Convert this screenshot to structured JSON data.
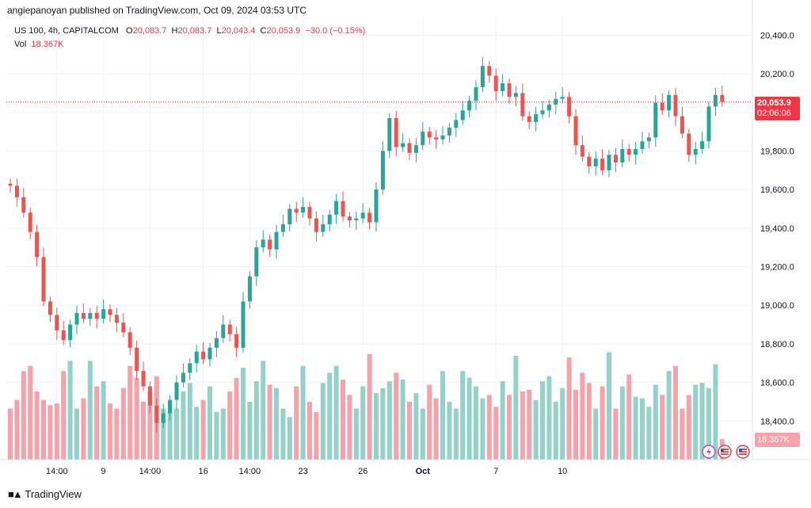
{
  "header": {
    "published": "angiepanoyan published on TradingView.com, Oct 09, 2024 03:53 UTC"
  },
  "legend": {
    "symbol": "US 100, 4h, CAPITALCOM",
    "o_label": "O",
    "o_value": "20,083.7",
    "h_label": "H",
    "h_value": "20,083.7",
    "l_label": "L",
    "l_value": "20,043.4",
    "c_label": "C",
    "c_value": "20,053.9",
    "change": "−30.0 (−0.15%)",
    "vol_label": "Vol",
    "vol_value": "18.367K"
  },
  "price_tag": {
    "price": "20,053.9",
    "countdown": "02:06:06"
  },
  "volume_tag": "18.367K",
  "footer": {
    "brand": "TradingView"
  },
  "colors": {
    "up": "#26a69a",
    "down": "#ef5350",
    "up_vol": "#93d2cb",
    "down_vol": "#f7a1a8",
    "grid": "#f0f3fa"
  },
  "icons": [
    "flash-icon",
    "us-flag-icon",
    "us-flag-icon"
  ],
  "chart_data": {
    "type": "candlestick",
    "title": "US 100, 4h, CAPITALCOM",
    "ylim": [
      18200,
      20500
    ],
    "y_ticks": [
      "20,400.0",
      "20,200.0",
      "20,000.0",
      "19,800.0",
      "19,600.0",
      "19,400.0",
      "19,200.0",
      "19,000.0",
      "18,800.0",
      "18,600.0",
      "18,400.0"
    ],
    "y_tick_values": [
      20400,
      20200,
      20000,
      19800,
      19600,
      19400,
      19200,
      19000,
      18800,
      18600,
      18400
    ],
    "x_ticks": [
      "14:00",
      "9",
      "14:00",
      "16",
      "14:00",
      "23",
      "26",
      "Oct",
      "7",
      "10"
    ],
    "x_tick_bar_index": [
      7,
      14,
      21,
      29,
      36,
      44,
      53,
      62,
      73,
      83
    ],
    "last_price": 20053.9,
    "grid": true,
    "closes": [
      19620,
      19560,
      19480,
      19380,
      19250,
      19020,
      18950,
      18870,
      18820,
      18900,
      18960,
      18930,
      18960,
      18930,
      18980,
      18950,
      18910,
      18860,
      18780,
      18660,
      18580,
      18480,
      18390,
      18440,
      18510,
      18600,
      18650,
      18700,
      18760,
      18720,
      18780,
      18830,
      18900,
      18850,
      18780,
      19020,
      19150,
      19300,
      19340,
      19290,
      19380,
      19420,
      19500,
      19480,
      19510,
      19450,
      19380,
      19420,
      19470,
      19540,
      19460,
      19440,
      19450,
      19480,
      19430,
      19600,
      19800,
      19970,
      19820,
      19840,
      19790,
      19830,
      19900,
      19870,
      19860,
      19880,
      19920,
      19960,
      20010,
      20060,
      20130,
      20240,
      20190,
      20110,
      20150,
      20080,
      20100,
      19980,
      19950,
      19990,
      20010,
      20040,
      20070,
      20080,
      19980,
      19830,
      19770,
      19720,
      19760,
      19700,
      19780,
      19740,
      19810,
      19780,
      19810,
      19850,
      19870,
      20050,
      20010,
      20090,
      19980,
      19890,
      19780,
      19810,
      19850,
      20030,
      20090,
      20053.9
    ],
    "volumes": [
      0.3,
      0.35,
      0.52,
      0.55,
      0.4,
      0.35,
      0.32,
      0.33,
      0.52,
      0.58,
      0.3,
      0.36,
      0.58,
      0.43,
      0.46,
      0.33,
      0.3,
      0.42,
      0.55,
      0.48,
      0.34,
      0.4,
      0.49,
      0.3,
      0.28,
      0.3,
      0.4,
      0.45,
      0.31,
      0.35,
      0.43,
      0.28,
      0.3,
      0.4,
      0.48,
      0.54,
      0.34,
      0.46,
      0.58,
      0.44,
      0.42,
      0.3,
      0.25,
      0.43,
      0.55,
      0.34,
      0.28,
      0.45,
      0.51,
      0.55,
      0.47,
      0.38,
      0.3,
      0.43,
      0.62,
      0.39,
      0.42,
      0.46,
      0.51,
      0.47,
      0.34,
      0.39,
      0.3,
      0.44,
      0.36,
      0.52,
      0.34,
      0.3,
      0.52,
      0.48,
      0.43,
      0.36,
      0.38,
      0.31,
      0.46,
      0.38,
      0.61,
      0.4,
      0.41,
      0.35,
      0.46,
      0.49,
      0.34,
      0.42,
      0.6,
      0.41,
      0.51,
      0.45,
      0.3,
      0.43,
      0.63,
      0.3,
      0.43,
      0.5,
      0.37,
      0.36,
      0.31,
      0.44,
      0.38,
      0.52,
      0.55,
      0.3,
      0.38,
      0.44,
      0.45,
      0.42,
      0.56,
      0.12
    ]
  }
}
